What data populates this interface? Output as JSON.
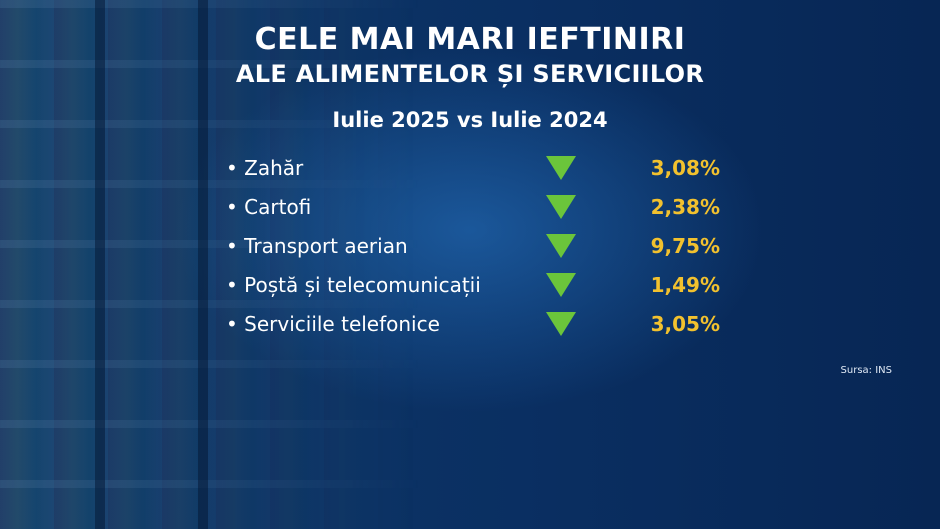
{
  "header": {
    "title_line1": "CELE MAI MARI IEFTINIRI",
    "title_line2": "ALE ALIMENTELOR ȘI SERVICIILOR",
    "subtitle": "Iulie 2025 vs Iulie 2024"
  },
  "items": [
    {
      "label": "• Zahăr",
      "value": "3,08%",
      "trend_icon": "down-triangle-icon"
    },
    {
      "label": "• Cartofi",
      "value": "2,38%",
      "trend_icon": "down-triangle-icon"
    },
    {
      "label": "• Transport aerian",
      "value": "9,75%",
      "trend_icon": "down-triangle-icon"
    },
    {
      "label": "• Poștă și telecomunicații",
      "value": "1,49%",
      "trend_icon": "down-triangle-icon"
    },
    {
      "label": "• Serviciile telefonice",
      "value": "3,05%",
      "trend_icon": "down-triangle-icon"
    }
  ],
  "source": "Sursa: INS",
  "colors": {
    "arrow": "#6bc53b",
    "value": "#f2c12e",
    "text": "#ffffff"
  }
}
